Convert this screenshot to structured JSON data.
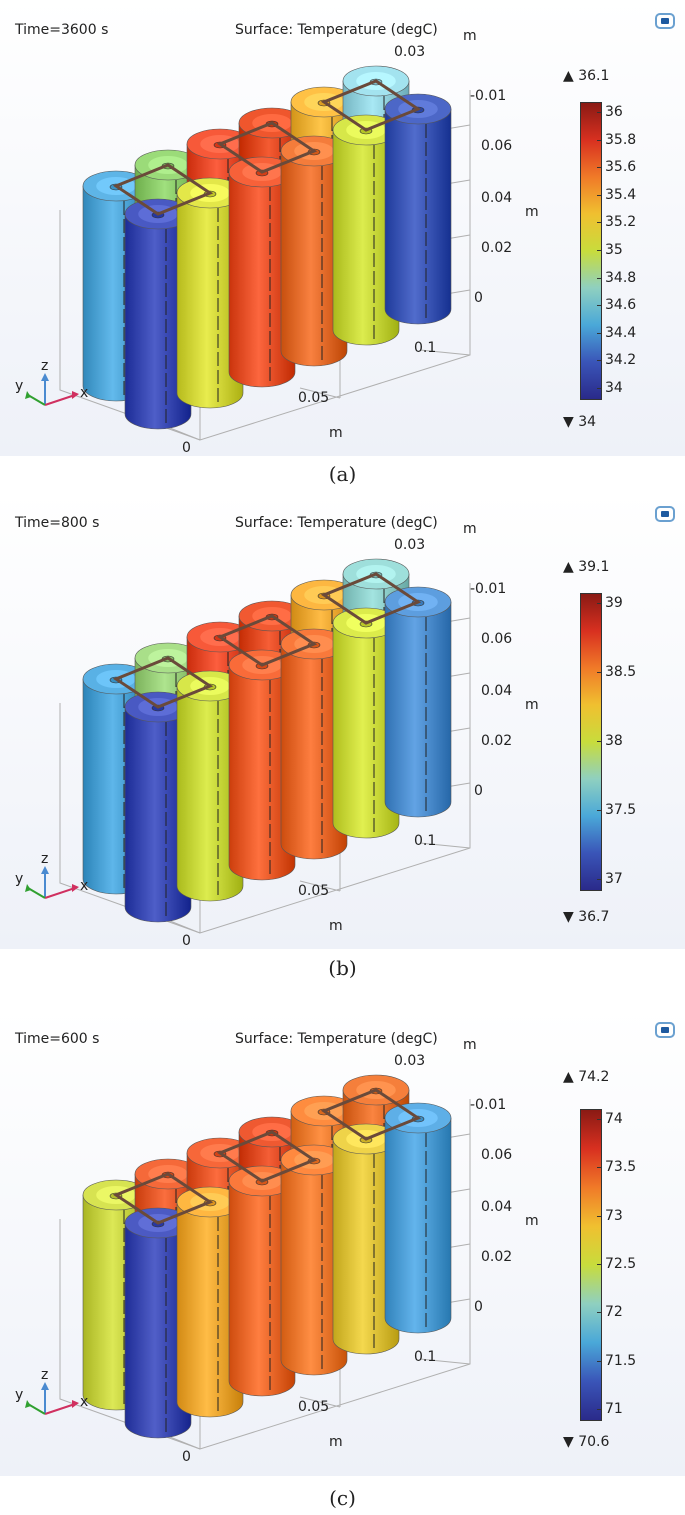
{
  "panels": [
    {
      "time_label": "Time=3600 s",
      "surface_label": "Surface: Temperature (degC)",
      "caption": "(a)",
      "colorbar": {
        "max_label": "36.1",
        "min_label": "34",
        "ticks": [
          "36",
          "35.8",
          "35.6",
          "35.4",
          "35.2",
          "35",
          "34.8",
          "34.6",
          "34.4",
          "34.2",
          "34"
        ]
      },
      "axis_labels": {
        "m_top": "m",
        "z_003": "0.03",
        "y_m001": "-0.01",
        "z_006": "0.06",
        "z_004": "0.04",
        "m_side": "m",
        "z_002": "0.02",
        "z_0": "0",
        "x_01": "0.1",
        "x_005": "0.05",
        "m_bottom": "m",
        "x_0": "0"
      },
      "cells": [
        "#3a4ab4",
        "#d4d83a",
        "#e8522a",
        "#e56d2c",
        "#c8d83a",
        "#3d58b8",
        "#4fa6d8",
        "#8ccc6a",
        "#e84a2a",
        "#e0471e",
        "#f0b236",
        "#94d4e0"
      ]
    },
    {
      "time_label": "Time=800 s",
      "surface_label": "Surface: Temperature (degC)",
      "caption": "(b)",
      "colorbar": {
        "max_label": "39.1",
        "min_label": "36.7",
        "ticks": [
          "39",
          "38.5",
          "38",
          "37.5",
          "37"
        ]
      },
      "axis_labels": {
        "m_top": "m",
        "z_003": "0.03",
        "y_m001": "-0.01",
        "z_006": "0.06",
        "z_004": "0.04",
        "m_side": "m",
        "z_002": "0.02",
        "z_0": "0",
        "x_01": "0.1",
        "x_005": "0.05",
        "m_bottom": "m",
        "x_0": "0"
      },
      "cells": [
        "#3a4ab4",
        "#c8d83a",
        "#ea5c2a",
        "#ea6a2c",
        "#cddc3c",
        "#4e8fd0",
        "#4aa2d6",
        "#9ad07a",
        "#e84a2a",
        "#e24a22",
        "#eea832",
        "#8fd0cc"
      ]
    },
    {
      "time_label": "Time=600 s",
      "surface_label": "Surface: Temperature (degC)",
      "caption": "(c)",
      "colorbar": {
        "max_label": "74.2",
        "min_label": "70.6",
        "ticks": [
          "74",
          "73.5",
          "73",
          "72.5",
          "72",
          "71.5",
          "71"
        ]
      },
      "axis_labels": {
        "m_top": "m",
        "z_003": "0.03",
        "y_m001": "-0.01",
        "z_006": "0.06",
        "z_004": "0.04",
        "m_side": "m",
        "z_002": "0.02",
        "z_0": "0",
        "x_01": "0.1",
        "x_005": "0.05",
        "m_bottom": "m",
        "x_0": "0"
      },
      "cells": [
        "#3d4bb4",
        "#f0a832",
        "#ec6a2c",
        "#f07a30",
        "#e0c43a",
        "#4fa0d8",
        "#c8d442",
        "#e65a2a",
        "#e8582a",
        "#e04a22",
        "#ef7d30",
        "#e6702c"
      ]
    }
  ],
  "triad": {
    "z": "z",
    "y": "y",
    "x": "x"
  },
  "colormap": [
    "#2a2a8a",
    "#3a55b8",
    "#4aa8d8",
    "#8fd0c0",
    "#c8dc3c",
    "#f0c030",
    "#f07a28",
    "#d83020",
    "#8a1a14"
  ]
}
